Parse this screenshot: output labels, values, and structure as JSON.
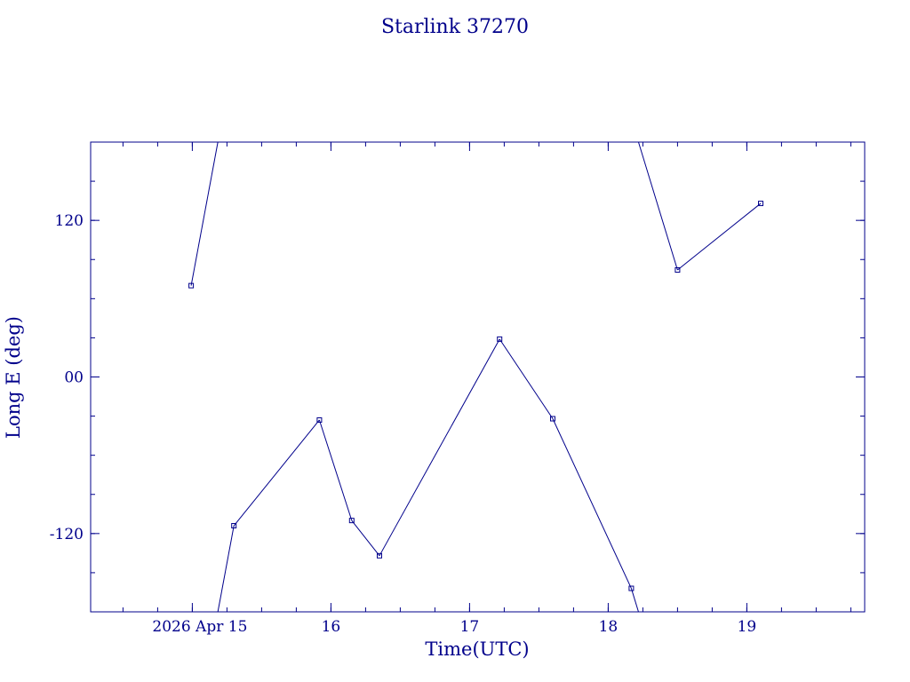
{
  "chart_data": {
    "type": "line",
    "title": "Starlink 37270",
    "xlabel": "Time(UTC)",
    "ylabel": "Long E (deg)",
    "x_tick_labels": [
      "2026 Apr 15",
      "16",
      "17",
      "18",
      "19"
    ],
    "y_tick_labels": [
      "120",
      "00",
      "-120"
    ],
    "x_ticks": [
      "2026-04-15T00:00",
      "2026-04-16T00:00",
      "2026-04-17T00:00",
      "2026-04-18T00:00",
      "2026-04-19T00:00"
    ],
    "y_ticks": [
      120,
      0,
      -120
    ],
    "xlim": [
      "2026-04-14T06:24",
      "2026-04-19T20:24"
    ],
    "ylim": [
      -180,
      180
    ],
    "grid": false,
    "wrap": "longitude wraps at ±180°",
    "series": [
      {
        "points": [
          {
            "x": "2026-04-14T23:48",
            "y": 70
          },
          {
            "x": "2026-04-15T07:12",
            "y": -114
          },
          {
            "x": "2026-04-15T22:00",
            "y": -33
          },
          {
            "x": "2026-04-16T03:36",
            "y": -110
          },
          {
            "x": "2026-04-16T08:24",
            "y": -137
          },
          {
            "x": "2026-04-17T05:12",
            "y": 29
          },
          {
            "x": "2026-04-17T14:24",
            "y": -32
          },
          {
            "x": "2026-04-18T04:00",
            "y": -162
          },
          {
            "x": "2026-04-18T12:00",
            "y": 82
          },
          {
            "x": "2026-04-19T02:24",
            "y": 133
          }
        ]
      }
    ],
    "color": "#00008b"
  }
}
